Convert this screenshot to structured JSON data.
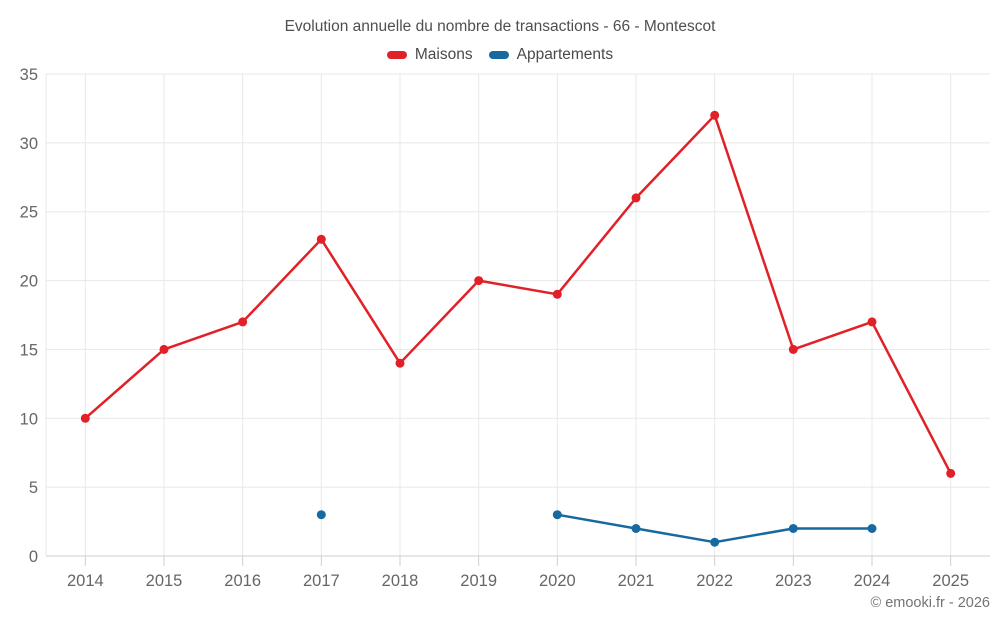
{
  "title": "Evolution annuelle du nombre de transactions - 66 - Montescot",
  "credit": "© emooki.fr - 2026",
  "colors": {
    "maisons": "#e02127",
    "appartements": "#17699f",
    "grid": "#e8e8e8",
    "axis": "#cfcfcf",
    "tick_text": "#666666",
    "title_text": "#4f4f4f"
  },
  "chart_data": {
    "type": "line",
    "title": "Evolution annuelle du nombre de transactions - 66 - Montescot",
    "categories": [
      "2014",
      "2015",
      "2016",
      "2017",
      "2018",
      "2019",
      "2020",
      "2021",
      "2022",
      "2023",
      "2024",
      "2025"
    ],
    "series": [
      {
        "name": "Maisons",
        "color": "#e02127",
        "values": [
          10,
          15,
          17,
          23,
          14,
          20,
          19,
          26,
          32,
          15,
          17,
          6
        ]
      },
      {
        "name": "Appartements",
        "color": "#17699f",
        "values": [
          null,
          null,
          null,
          3,
          null,
          null,
          3,
          2,
          1,
          2,
          2,
          null
        ]
      }
    ],
    "xlabel": "",
    "ylabel": "",
    "ylim": [
      0,
      35
    ],
    "yticks": [
      0,
      5,
      10,
      15,
      20,
      25,
      30,
      35
    ],
    "grid": true,
    "legend_position": "top",
    "legend": [
      "Maisons",
      "Appartements"
    ]
  }
}
